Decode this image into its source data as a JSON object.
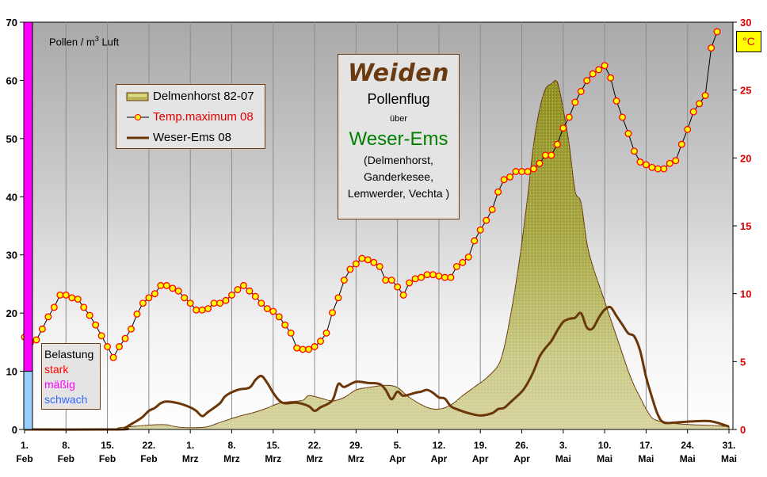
{
  "chart_data": {
    "type": "area+line",
    "title": "Weiden Pollenflug über Weser-Ems",
    "subtitle": "(Delmenhorst, Ganderkesee, Lemwerder, Vechta )",
    "ylabel_left": "Pollen / m³ Luft",
    "ylabel_right": "°C",
    "ylim_left": [
      0,
      70
    ],
    "ylim_right": [
      0,
      30
    ],
    "yticks_left": [
      0,
      10,
      20,
      30,
      40,
      50,
      60,
      70
    ],
    "yticks_right": [
      0,
      5,
      10,
      15,
      20,
      25,
      30
    ],
    "xticks": [
      {
        "day": 0,
        "l1": "1.",
        "l2": "Feb"
      },
      {
        "day": 7,
        "l1": "8.",
        "l2": "Feb"
      },
      {
        "day": 14,
        "l1": "15.",
        "l2": "Feb"
      },
      {
        "day": 21,
        "l1": "22.",
        "l2": "Feb"
      },
      {
        "day": 28,
        "l1": "1.",
        "l2": "Mrz"
      },
      {
        "day": 35,
        "l1": "8.",
        "l2": "Mrz"
      },
      {
        "day": 42,
        "l1": "15.",
        "l2": "Mrz"
      },
      {
        "day": 49,
        "l1": "22.",
        "l2": "Mrz"
      },
      {
        "day": 56,
        "l1": "29.",
        "l2": "Mrz"
      },
      {
        "day": 63,
        "l1": "5.",
        "l2": "Apr"
      },
      {
        "day": 70,
        "l1": "12.",
        "l2": "Apr"
      },
      {
        "day": 77,
        "l1": "19.",
        "l2": "Apr"
      },
      {
        "day": 84,
        "l1": "26.",
        "l2": "Apr"
      },
      {
        "day": 91,
        "l1": "3.",
        "l2": "Mai"
      },
      {
        "day": 98,
        "l1": "10.",
        "l2": "Mai"
      },
      {
        "day": 105,
        "l1": "17.",
        "l2": "Mai"
      },
      {
        "day": 112,
        "l1": "24.",
        "l2": "Mai"
      },
      {
        "day": 119,
        "l1": "31.",
        "l2": "Mai"
      }
    ],
    "grid": "vertical",
    "legend_position": "upper-left inset",
    "series": [
      {
        "name": "Delmenhorst 82-07",
        "type": "area",
        "axis": "left",
        "color": "#8f8f2a",
        "points": [
          [
            0,
            0
          ],
          [
            14,
            0
          ],
          [
            16,
            0.3
          ],
          [
            19,
            0.6
          ],
          [
            22,
            0.8
          ],
          [
            24,
            0.8
          ],
          [
            26,
            0.4
          ],
          [
            29,
            0.3
          ],
          [
            31,
            0.5
          ],
          [
            33,
            1.2
          ],
          [
            36,
            2.2
          ],
          [
            39,
            3.0
          ],
          [
            41,
            3.7
          ],
          [
            43,
            4.5
          ],
          [
            45,
            4.8
          ],
          [
            47,
            5.0
          ],
          [
            48,
            5.8
          ],
          [
            50,
            5.4
          ],
          [
            52,
            4.9
          ],
          [
            54,
            5.5
          ],
          [
            56,
            6.8
          ],
          [
            58,
            7.2
          ],
          [
            61,
            7.6
          ],
          [
            63,
            7.2
          ],
          [
            65,
            5.5
          ],
          [
            68,
            3.8
          ],
          [
            70,
            3.5
          ],
          [
            72,
            4.2
          ],
          [
            74,
            5.8
          ],
          [
            76,
            7.3
          ],
          [
            78,
            8.8
          ],
          [
            80,
            11.0
          ],
          [
            81,
            14.0
          ],
          [
            82,
            19.0
          ],
          [
            83,
            25.0
          ],
          [
            84,
            32.0
          ],
          [
            85,
            40.0
          ],
          [
            86,
            49.0
          ],
          [
            87,
            55.0
          ],
          [
            88,
            58.5
          ],
          [
            89,
            59.4
          ],
          [
            90,
            59.7
          ],
          [
            91,
            55.0
          ],
          [
            92,
            49.0
          ],
          [
            93,
            41.0
          ],
          [
            94,
            39.0
          ],
          [
            95,
            32.0
          ],
          [
            96,
            28.0
          ],
          [
            97,
            25.0
          ],
          [
            98,
            22.0
          ],
          [
            99,
            19.0
          ],
          [
            100,
            16.0
          ],
          [
            101,
            13.0
          ],
          [
            102,
            10.0
          ],
          [
            103,
            7.5
          ],
          [
            104,
            5.5
          ],
          [
            105,
            3.5
          ],
          [
            106,
            2.0
          ],
          [
            107,
            1.5
          ],
          [
            108,
            1.2
          ],
          [
            110,
            1.0
          ],
          [
            113,
            0.8
          ],
          [
            116,
            0.7
          ],
          [
            119,
            0.5
          ]
        ]
      },
      {
        "name": "Temp.maximum 08",
        "type": "line+markers",
        "axis": "right",
        "color": "#000000",
        "marker_fill": "#ffff00",
        "marker_stroke": "#ff0000",
        "values": [
          6.8,
          6.4,
          6.6,
          7.4,
          8.3,
          9.0,
          9.9,
          9.9,
          9.7,
          9.6,
          9.0,
          8.4,
          7.7,
          6.9,
          6.1,
          5.3,
          6.1,
          6.7,
          7.4,
          8.5,
          9.3,
          9.7,
          10.0,
          10.6,
          10.6,
          10.4,
          10.2,
          9.7,
          9.3,
          8.8,
          8.8,
          8.9,
          9.3,
          9.3,
          9.5,
          9.9,
          10.3,
          10.6,
          10.2,
          9.8,
          9.3,
          8.9,
          8.7,
          8.3,
          7.7,
          7.1,
          6.0,
          5.9,
          5.9,
          6.1,
          6.5,
          7.1,
          8.6,
          9.7,
          11.0,
          11.8,
          12.2,
          12.6,
          12.5,
          12.3,
          12.0,
          11.0,
          11.0,
          10.5,
          9.9,
          10.8,
          11.1,
          11.2,
          11.4,
          11.4,
          11.3,
          11.2,
          11.2,
          12.0,
          12.3,
          12.7,
          13.9,
          14.7,
          15.4,
          16.2,
          17.5,
          18.4,
          18.6,
          19.0,
          19.0,
          19.0,
          19.2,
          19.6,
          20.2,
          20.2,
          21.0,
          22.2,
          23.0,
          24.1,
          24.9,
          25.7,
          26.2,
          26.5,
          26.8,
          25.9,
          24.2,
          23.0,
          21.8,
          20.5,
          19.7,
          19.5,
          19.3,
          19.2,
          19.2,
          19.6,
          19.8,
          21.0,
          22.1,
          23.4,
          24.0,
          24.6,
          28.1,
          29.3
        ]
      },
      {
        "name": "Weser-Ems 08",
        "type": "line",
        "axis": "left",
        "color": "#6b3608",
        "points": [
          [
            0,
            0
          ],
          [
            16,
            0
          ],
          [
            17,
            0.3
          ],
          [
            18,
            0.9
          ],
          [
            19,
            1.5
          ],
          [
            20,
            2.2
          ],
          [
            21,
            3.2
          ],
          [
            22,
            3.7
          ],
          [
            23,
            4.5
          ],
          [
            24,
            4.8
          ],
          [
            26,
            4.5
          ],
          [
            28,
            3.8
          ],
          [
            29,
            3.2
          ],
          [
            30,
            2.3
          ],
          [
            31,
            3.0
          ],
          [
            33,
            4.5
          ],
          [
            34,
            5.8
          ],
          [
            36,
            6.8
          ],
          [
            38,
            7.2
          ],
          [
            39,
            8.5
          ],
          [
            40,
            9.2
          ],
          [
            41,
            8.0
          ],
          [
            42,
            6.3
          ],
          [
            43,
            5.0
          ],
          [
            44,
            4.5
          ],
          [
            46,
            4.6
          ],
          [
            48,
            4.0
          ],
          [
            49,
            3.2
          ],
          [
            50,
            3.8
          ],
          [
            52,
            5.0
          ],
          [
            53,
            7.8
          ],
          [
            54,
            7.3
          ],
          [
            56,
            8.2
          ],
          [
            58,
            8.0
          ],
          [
            60,
            7.8
          ],
          [
            61,
            6.8
          ],
          [
            62,
            5.2
          ],
          [
            63,
            6.5
          ],
          [
            64,
            5.8
          ],
          [
            66,
            6.3
          ],
          [
            67,
            6.5
          ],
          [
            68,
            6.8
          ],
          [
            69,
            6.3
          ],
          [
            70,
            5.5
          ],
          [
            71,
            5.3
          ],
          [
            72,
            4.0
          ],
          [
            73,
            3.5
          ],
          [
            75,
            2.8
          ],
          [
            77,
            2.4
          ],
          [
            79,
            2.8
          ],
          [
            80,
            3.5
          ],
          [
            81,
            3.7
          ],
          [
            82,
            4.6
          ],
          [
            84,
            6.5
          ],
          [
            85,
            8.0
          ],
          [
            86,
            10.0
          ],
          [
            87,
            12.5
          ],
          [
            88,
            14.0
          ],
          [
            89,
            15.2
          ],
          [
            90,
            17.0
          ],
          [
            91,
            18.5
          ],
          [
            92,
            19.0
          ],
          [
            93,
            19.2
          ],
          [
            94,
            20.0
          ],
          [
            95,
            17.5
          ],
          [
            96,
            17.4
          ],
          [
            97,
            19.2
          ],
          [
            98,
            20.6
          ],
          [
            99,
            21.0
          ],
          [
            100,
            19.5
          ],
          [
            101,
            18.0
          ],
          [
            102,
            16.5
          ],
          [
            103,
            16.0
          ],
          [
            104,
            13.5
          ],
          [
            105,
            9.0
          ],
          [
            106,
            5.5
          ],
          [
            107,
            2.5
          ],
          [
            108,
            1.2
          ],
          [
            110,
            1.2
          ],
          [
            113,
            1.4
          ],
          [
            116,
            1.4
          ],
          [
            119,
            0.5
          ]
        ]
      }
    ],
    "bands": [
      {
        "label": "stark",
        "from": 10,
        "to": 70,
        "color": "#ff00ff"
      },
      {
        "label": "schwach",
        "from": 0,
        "to": 10,
        "color": "#99ccff"
      }
    ]
  },
  "legend": {
    "items": [
      {
        "label": "Delmenhorst 82-07",
        "color": "#000000"
      },
      {
        "label": "Temp.maximum 08",
        "color": "#e00000"
      },
      {
        "label": "Weser-Ems 08",
        "color": "#000000"
      }
    ]
  },
  "title_box": {
    "title": "Weiden",
    "line2": "Pollenflug",
    "line3": "über",
    "region": "Weser-Ems",
    "places": [
      "(Delmenhorst,",
      "Ganderkesee,",
      "Lemwerder, Vechta )"
    ]
  },
  "belastung": {
    "heading": "Belastung",
    "levels": [
      {
        "label": "stark",
        "color": "#ff0000"
      },
      {
        "label": "mäßig",
        "color": "#ff00ff"
      },
      {
        "label": "schwach",
        "color": "#3366ff"
      }
    ]
  },
  "axis_labels": {
    "left_unit_prefix": "Pollen / m",
    "left_unit_sup": "3",
    "left_unit_suffix": " Luft",
    "right_unit": "°C"
  }
}
